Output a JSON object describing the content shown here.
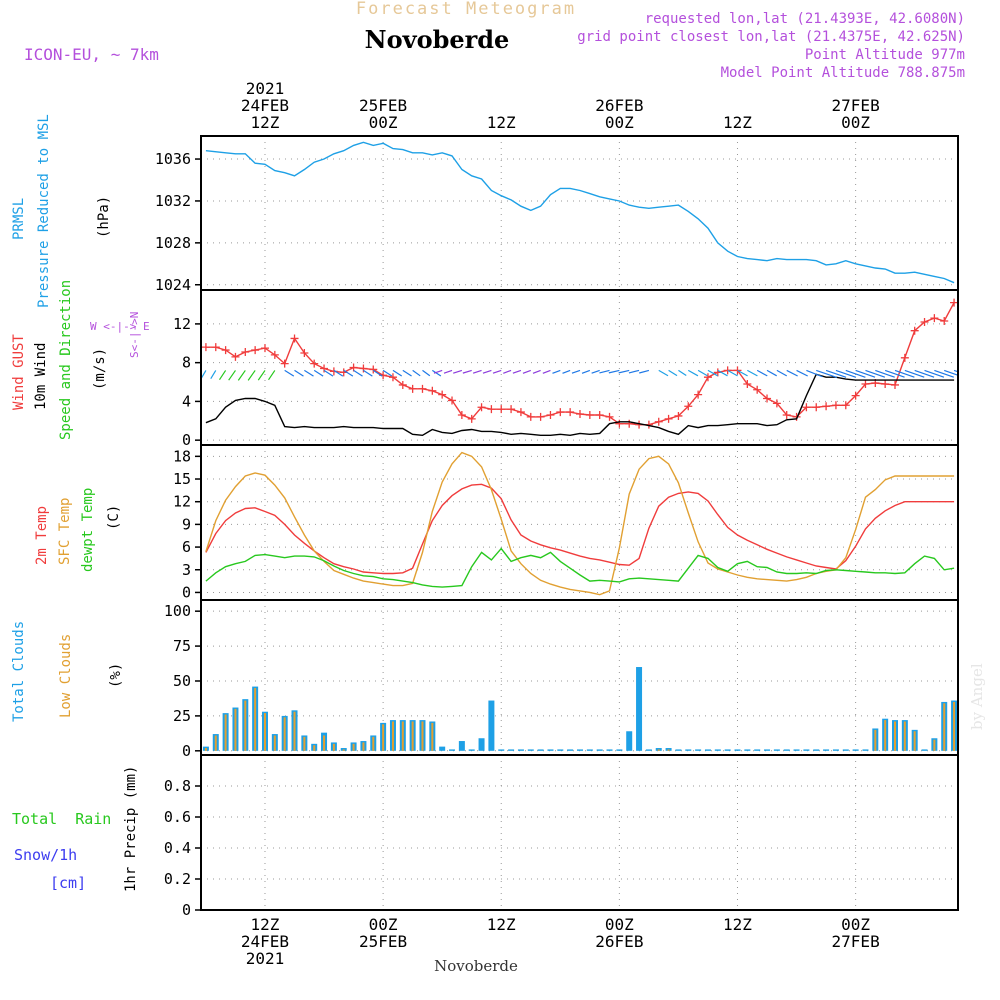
{
  "header": {
    "supertitle": "Forecast Meteogram",
    "station": "Novoberde",
    "model": "ICON-EU, ~ 7km",
    "info": [
      "requested lon,lat (21.4393E, 42.6080N)",
      "grid point closest lon,lat (21.4375E, 42.625N)",
      "Point Altitude 977m",
      "Model Point Altitude 788.875m"
    ],
    "watermark": "by Angel",
    "footer_station": "Novoberde"
  },
  "colors": {
    "pressure": "#1ea0e6",
    "gust": "#f03c3c",
    "wind": "#000000",
    "temp2m": "#f03c3c",
    "sfc": "#e1a032",
    "dewpt": "#28c81e",
    "total_clouds": "#1ea0e6",
    "low_clouds": "#e1a032",
    "rain": "#28c81e",
    "snow": "#3c3cf0",
    "title": "#e6c898",
    "info": "#b450dc"
  },
  "time_axis": {
    "top_labels": [
      {
        "t": 12,
        "lines": [
          "2021",
          "24FEB",
          "12Z"
        ]
      },
      {
        "t": 24,
        "lines": [
          "25FEB",
          "00Z"
        ]
      },
      {
        "t": 36,
        "lines": [
          "12Z"
        ]
      },
      {
        "t": 48,
        "lines": [
          "26FEB",
          "00Z"
        ]
      },
      {
        "t": 60,
        "lines": [
          "12Z"
        ]
      },
      {
        "t": 72,
        "lines": [
          "27FEB",
          "00Z"
        ]
      }
    ],
    "bottom_labels": [
      {
        "t": 12,
        "lines": [
          "12Z",
          "24FEB",
          "2021"
        ]
      },
      {
        "t": 24,
        "lines": [
          "00Z",
          "25FEB"
        ]
      },
      {
        "t": 36,
        "lines": [
          "12Z"
        ]
      },
      {
        "t": 48,
        "lines": [
          "00Z",
          "26FEB"
        ]
      },
      {
        "t": 60,
        "lines": [
          "12Z"
        ]
      },
      {
        "t": 72,
        "lines": [
          "00Z",
          "27FEB"
        ]
      }
    ]
  },
  "panel_labels": {
    "pressure": {
      "left1": "PRMSL",
      "left2": "Pressure Reduced to MSL",
      "unit": "(hPa)"
    },
    "wind": {
      "gust": "Wind GUST",
      "wind": "10m Wind",
      "speed": "Speed and Direction",
      "unit": "(m/s)",
      "compass_ns": "S<-|->N",
      "compass_we": "W <-|-> E"
    },
    "temp": {
      "t2m": "2m Temp",
      "sfc": "SFC Temp",
      "dew": "dewpt Temp",
      "unit": "(C)"
    },
    "clouds": {
      "total": "Total Clouds",
      "low": "Low Clouds",
      "unit": "(%)"
    },
    "precip": {
      "rain": "Total  Rain",
      "snow": "Snow/1h",
      "snow_unit": "[cm]",
      "ylabel": "1hr Precip (mm)"
    }
  },
  "chart_data": [
    {
      "type": "line",
      "name": "PRMSL",
      "ylabel": "(hPa)",
      "ylim": [
        1023.5,
        1038.2
      ],
      "yticks": [
        1024,
        1028,
        1032,
        1036
      ],
      "x": [
        6,
        8,
        9,
        10,
        11,
        12,
        13,
        14,
        15,
        16,
        17,
        18,
        19,
        20,
        21,
        22,
        23,
        24,
        25,
        26,
        27,
        28,
        29,
        30,
        31,
        32,
        33,
        34,
        35,
        36,
        37,
        38,
        39,
        40,
        41,
        42,
        43,
        44,
        45,
        46,
        47,
        48,
        49,
        50,
        51,
        52,
        53,
        54,
        55,
        56,
        57,
        58,
        59,
        60,
        61,
        62,
        63,
        64,
        65,
        66,
        67,
        68,
        69,
        70,
        71,
        72,
        73,
        74,
        75,
        76,
        77,
        78,
        79,
        80,
        81,
        82
      ],
      "series": [
        {
          "name": "PRMSL",
          "values": [
            1036.8,
            1036.6,
            1036.5,
            1036.5,
            1035.6,
            1035.5,
            1034.9,
            1034.7,
            1034.4,
            1035.0,
            1035.7,
            1036.0,
            1036.5,
            1036.8,
            1037.3,
            1037.6,
            1037.3,
            1037.5,
            1037.0,
            1036.9,
            1036.6,
            1036.6,
            1036.4,
            1036.6,
            1036.3,
            1035.0,
            1034.4,
            1034.1,
            1033.0,
            1032.5,
            1032.1,
            1031.5,
            1031.1,
            1031.5,
            1032.6,
            1033.2,
            1033.2,
            1033.0,
            1032.7,
            1032.4,
            1032.2,
            1032.0,
            1031.6,
            1031.4,
            1031.3,
            1031.4,
            1031.5,
            1031.6,
            1031.0,
            1030.3,
            1029.4,
            1028.0,
            1027.2,
            1026.7,
            1026.5,
            1026.4,
            1026.3,
            1026.5,
            1026.4,
            1026.4,
            1026.4,
            1026.3,
            1025.9,
            1026.0,
            1026.3,
            1026.0,
            1025.8,
            1025.6,
            1025.5,
            1025.1,
            1025.1,
            1025.2,
            1025.0,
            1024.8,
            1024.6,
            1024.2
          ]
        }
      ]
    },
    {
      "type": "line",
      "name": "Wind",
      "ylabel": "(m/s)",
      "ylim": [
        -0.5,
        15.5
      ],
      "yticks": [
        0,
        4,
        8,
        12
      ],
      "x": [
        6,
        7,
        8,
        9,
        10,
        11,
        12,
        13,
        14,
        15,
        16,
        17,
        18,
        19,
        20,
        21,
        22,
        23,
        24,
        25,
        26,
        27,
        28,
        29,
        30,
        31,
        32,
        33,
        34,
        35,
        36,
        37,
        38,
        39,
        40,
        41,
        42,
        43,
        44,
        45,
        46,
        47,
        48,
        49,
        50,
        51,
        52,
        53,
        54,
        55,
        56,
        57,
        58,
        59,
        60,
        61,
        62,
        63,
        64,
        65,
        66,
        67,
        68,
        69,
        70,
        71,
        72,
        73,
        74,
        75,
        76,
        77,
        78,
        79,
        80,
        81,
        82
      ],
      "series": [
        {
          "name": "Wind GUST",
          "values": [
            9.6,
            9.6,
            9.3,
            8.6,
            9.1,
            9.3,
            9.5,
            8.8,
            7.9,
            10.5,
            9.0,
            7.9,
            7.4,
            7.1,
            7.0,
            7.5,
            7.4,
            7.3,
            6.7,
            6.5,
            5.7,
            5.3,
            5.3,
            5.1,
            4.7,
            4.1,
            2.6,
            2.2,
            3.4,
            3.2,
            3.2,
            3.2,
            2.9,
            2.4,
            2.4,
            2.6,
            2.9,
            2.9,
            2.7,
            2.6,
            2.6,
            2.4,
            1.7,
            1.7,
            1.6,
            1.6,
            1.9,
            2.2,
            2.5,
            3.5,
            4.7,
            6.5,
            7.0,
            7.2,
            7.2,
            5.8,
            5.2,
            4.3,
            3.8,
            2.6,
            2.4,
            3.4,
            3.4,
            3.5,
            3.6,
            3.6,
            4.6,
            5.8,
            5.9,
            5.8,
            5.7,
            8.5,
            11.3,
            12.2,
            12.6,
            12.3,
            14.2
          ]
        },
        {
          "name": "10m Wind",
          "values": [
            1.8,
            2.2,
            3.4,
            4.1,
            4.3,
            4.3,
            4.0,
            3.6,
            1.4,
            1.3,
            1.4,
            1.3,
            1.3,
            1.3,
            1.4,
            1.3,
            1.3,
            1.3,
            1.2,
            1.2,
            1.2,
            0.6,
            0.5,
            1.1,
            0.8,
            0.7,
            1.0,
            1.1,
            0.9,
            0.9,
            0.8,
            0.6,
            0.7,
            0.6,
            0.5,
            0.5,
            0.6,
            0.5,
            0.7,
            0.6,
            0.7,
            1.7,
            1.9,
            1.9,
            1.7,
            1.5,
            1.3,
            0.9,
            0.6,
            1.5,
            1.3,
            1.5,
            1.5,
            1.6,
            1.7,
            1.7,
            1.7,
            1.5,
            1.6,
            2.1,
            2.2,
            4.6,
            6.8,
            6.5,
            6.5,
            6.3,
            6.2,
            6.2,
            6.2,
            6.2,
            6.2,
            6.2,
            6.2,
            6.2,
            6.2,
            6.2,
            6.2
          ]
        }
      ]
    },
    {
      "type": "line",
      "name": "Temperature",
      "ylabel": "(C)",
      "ylim": [
        -1,
        19.5
      ],
      "yticks": [
        0,
        3,
        6,
        9,
        12,
        15,
        18
      ],
      "x": [
        6,
        7,
        8,
        9,
        10,
        11,
        12,
        13,
        14,
        15,
        16,
        17,
        18,
        19,
        20,
        21,
        22,
        23,
        24,
        25,
        26,
        27,
        28,
        29,
        30,
        31,
        32,
        33,
        34,
        35,
        36,
        37,
        38,
        39,
        40,
        41,
        42,
        43,
        44,
        45,
        46,
        47,
        48,
        49,
        50,
        51,
        52,
        53,
        54,
        55,
        56,
        57,
        58,
        59,
        60,
        61,
        62,
        63,
        64,
        65,
        66,
        67,
        68,
        69,
        70,
        71,
        72,
        73,
        74,
        75,
        76,
        77,
        78,
        79,
        80,
        81,
        82
      ],
      "series": [
        {
          "name": "2m Temp",
          "values": [
            5.3,
            7.8,
            9.5,
            10.5,
            11.1,
            11.2,
            10.7,
            10.2,
            9.0,
            7.6,
            6.5,
            5.5,
            4.6,
            3.8,
            3.4,
            3.1,
            2.7,
            2.6,
            2.5,
            2.5,
            2.6,
            3.2,
            6.4,
            9.5,
            11.5,
            12.8,
            13.7,
            14.2,
            14.3,
            13.8,
            12.4,
            9.6,
            7.6,
            6.8,
            6.3,
            5.9,
            5.6,
            5.2,
            4.8,
            4.5,
            4.3,
            4.0,
            3.7,
            3.6,
            4.5,
            8.5,
            11.4,
            12.6,
            13.1,
            13.3,
            13.1,
            12.1,
            10.3,
            8.6,
            7.6,
            6.9,
            6.3,
            5.7,
            5.2,
            4.7,
            4.3,
            3.9,
            3.5,
            3.3,
            3.1,
            4.2,
            6.1,
            8.4,
            9.8,
            10.8,
            11.5,
            12.0,
            12.0,
            12.0,
            12.0,
            12.0,
            12.0
          ]
        },
        {
          "name": "SFC Temp",
          "values": [
            5.4,
            9.5,
            12.2,
            14.0,
            15.4,
            15.8,
            15.5,
            14.2,
            12.5,
            10.0,
            7.6,
            5.5,
            4.1,
            2.9,
            2.4,
            1.9,
            1.5,
            1.3,
            1.1,
            0.9,
            0.9,
            1.2,
            5.3,
            10.7,
            14.6,
            17.0,
            18.5,
            18.0,
            16.6,
            13.6,
            9.7,
            5.5,
            3.8,
            2.5,
            1.6,
            1.1,
            0.7,
            0.4,
            0.2,
            0.0,
            -0.3,
            0.2,
            5.9,
            13.0,
            16.3,
            17.7,
            18.0,
            17.0,
            14.5,
            10.5,
            6.7,
            3.9,
            3.1,
            2.7,
            2.3,
            2.0,
            1.8,
            1.7,
            1.6,
            1.5,
            1.7,
            2.0,
            2.5,
            2.8,
            3.0,
            4.6,
            8.3,
            12.6,
            13.6,
            14.9,
            15.4,
            15.4,
            15.4,
            15.4,
            15.4,
            15.4,
            15.4
          ]
        },
        {
          "name": "dewpt Temp",
          "values": [
            1.5,
            2.6,
            3.4,
            3.8,
            4.1,
            4.9,
            5.0,
            4.8,
            4.6,
            4.8,
            4.8,
            4.7,
            4.2,
            3.5,
            2.9,
            2.5,
            2.2,
            2.1,
            1.8,
            1.7,
            1.5,
            1.3,
            1.0,
            0.8,
            0.7,
            0.8,
            0.9,
            3.4,
            5.3,
            4.3,
            5.8,
            4.1,
            4.6,
            4.9,
            4.6,
            5.3,
            4.1,
            3.2,
            2.3,
            1.5,
            1.6,
            1.5,
            1.4,
            1.8,
            1.9,
            1.8,
            1.7,
            1.6,
            1.5,
            3.2,
            4.9,
            4.5,
            3.3,
            2.8,
            3.8,
            4.1,
            3.4,
            3.3,
            2.7,
            2.5,
            2.5,
            2.6,
            2.5,
            2.9,
            3.0,
            2.9,
            2.8,
            2.7,
            2.6,
            2.6,
            2.5,
            2.6,
            3.8,
            4.8,
            4.5,
            3.0,
            3.2
          ]
        }
      ]
    },
    {
      "type": "bar",
      "name": "Clouds",
      "ylabel": "(%)",
      "ylim": [
        -3,
        108
      ],
      "yticks": [
        0,
        25,
        50,
        75,
        100
      ],
      "x": [
        6,
        7,
        8,
        9,
        10,
        11,
        12,
        13,
        14,
        15,
        16,
        17,
        18,
        19,
        20,
        21,
        22,
        23,
        24,
        25,
        26,
        27,
        28,
        29,
        30,
        31,
        32,
        33,
        34,
        35,
        36,
        37,
        38,
        39,
        40,
        41,
        42,
        43,
        44,
        45,
        46,
        47,
        48,
        49,
        50,
        51,
        52,
        53,
        54,
        55,
        56,
        57,
        58,
        59,
        60,
        61,
        62,
        63,
        64,
        65,
        66,
        67,
        68,
        69,
        70,
        71,
        72,
        73,
        74,
        75,
        76,
        77,
        78,
        79,
        80,
        81,
        82
      ],
      "series": [
        {
          "name": "Total Clouds",
          "values": [
            3,
            12,
            27,
            31,
            37,
            46,
            28,
            12,
            25,
            29,
            11,
            5,
            13,
            6,
            2,
            6,
            7,
            11,
            20,
            22,
            22,
            22,
            22,
            21,
            3,
            1,
            7,
            1,
            9,
            36,
            1,
            1,
            1,
            1,
            1,
            1,
            1,
            1,
            1,
            1,
            1,
            1,
            1,
            14,
            60,
            1,
            2,
            2,
            1,
            1,
            1,
            1,
            1,
            1,
            1,
            1,
            1,
            1,
            1,
            1,
            1,
            1,
            1,
            1,
            1,
            1,
            1,
            1,
            16,
            23,
            22,
            22,
            15,
            1,
            9,
            35,
            36
          ]
        },
        {
          "name": "Low Clouds",
          "values": [
            2,
            11,
            26,
            30,
            36,
            45,
            27,
            11,
            24,
            28,
            10,
            4,
            11,
            5,
            1,
            5,
            6,
            10,
            19,
            21,
            21,
            21,
            21,
            20,
            0,
            0,
            0,
            0,
            0,
            0,
            0,
            0,
            0,
            0,
            0,
            0,
            0,
            0,
            0,
            0,
            0,
            0,
            0,
            0,
            0,
            0,
            1,
            1,
            0,
            0,
            0,
            0,
            0,
            0,
            0,
            0,
            0,
            0,
            0,
            0,
            0,
            0,
            0,
            0,
            0,
            0,
            0,
            0,
            15,
            22,
            21,
            21,
            14,
            0,
            8,
            34,
            35
          ]
        }
      ]
    },
    {
      "type": "bar",
      "name": "Precipitation",
      "ylabel": "1hr Precip (mm)",
      "ylim": [
        0,
        1.0
      ],
      "yticks": [
        0,
        0.2,
        0.4,
        0.6,
        0.8
      ],
      "x": [
        6,
        82
      ],
      "series": [
        {
          "name": "Total Rain",
          "values": [
            0,
            0
          ]
        },
        {
          "name": "Snow/1h",
          "values": [
            0,
            0
          ]
        }
      ]
    }
  ]
}
